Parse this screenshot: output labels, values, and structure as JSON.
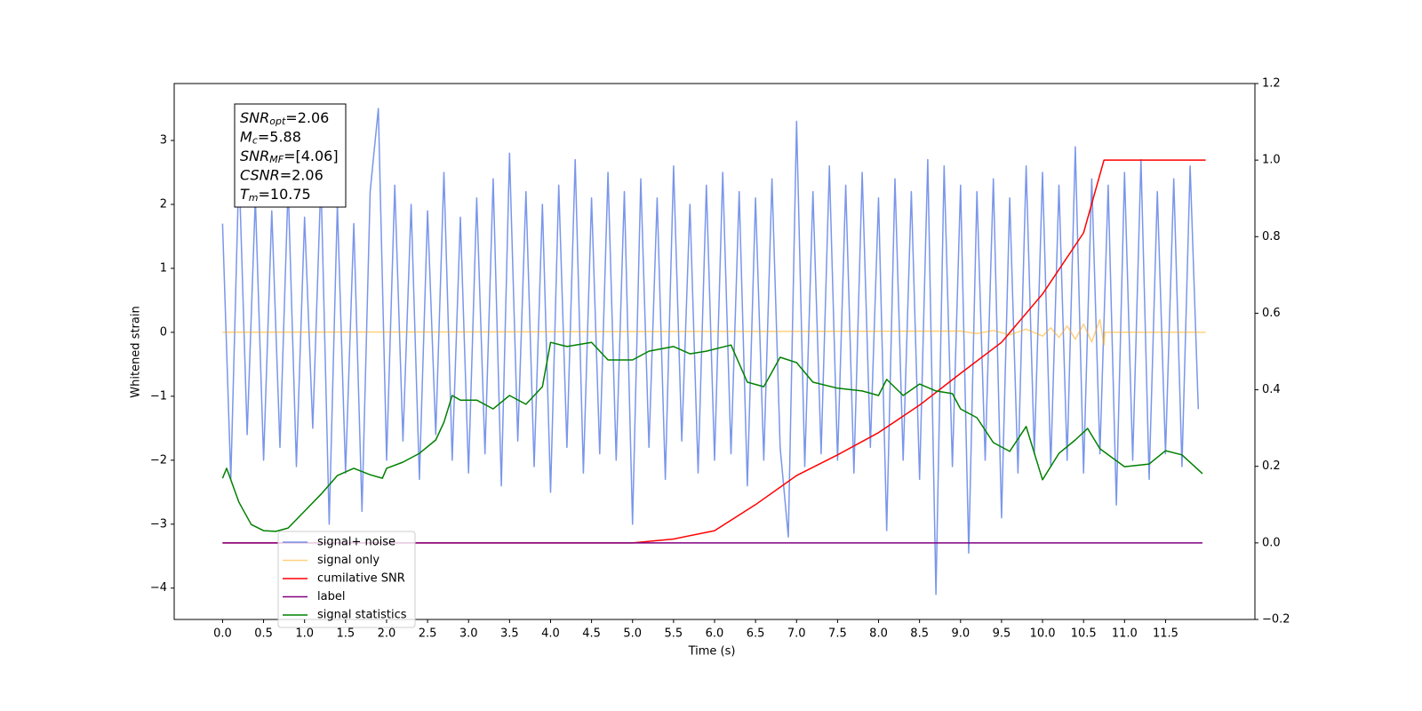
{
  "chart_data": {
    "type": "line",
    "xlabel": "Time (s)",
    "ylabel": "Whitened strain",
    "xlim": [
      -0.59,
      12.59
    ],
    "ylim": [
      -4.49,
      3.89
    ],
    "y2lim": [
      -0.2,
      1.2
    ],
    "xticks": [
      {
        "value": 0,
        "label": "0.0"
      },
      {
        "value": 0.5,
        "label": "0.5"
      },
      {
        "value": 1,
        "label": "1.0"
      },
      {
        "value": 1.5,
        "label": "1.5"
      },
      {
        "value": 2,
        "label": "2.0"
      },
      {
        "value": 2.5,
        "label": "2.5"
      },
      {
        "value": 3,
        "label": "3.0"
      },
      {
        "value": 3.5,
        "label": "3.5"
      },
      {
        "value": 4,
        "label": "4.0"
      },
      {
        "value": 4.5,
        "label": "4.5"
      },
      {
        "value": 5,
        "label": "5.0"
      },
      {
        "value": 5.5,
        "label": "5.5"
      },
      {
        "value": 6,
        "label": "6.0"
      },
      {
        "value": 6.5,
        "label": "6.5"
      },
      {
        "value": 7,
        "label": "7.0"
      },
      {
        "value": 7.5,
        "label": "7.5"
      },
      {
        "value": 8,
        "label": "8.0"
      },
      {
        "value": 8.5,
        "label": "8.5"
      },
      {
        "value": 9,
        "label": "9.0"
      },
      {
        "value": 9.5,
        "label": "9.5"
      },
      {
        "value": 10,
        "label": "10.0"
      },
      {
        "value": 10.5,
        "label": "10.5"
      },
      {
        "value": 11,
        "label": "11.0"
      },
      {
        "value": 11.5,
        "label": "11.5"
      }
    ],
    "yticks": [
      {
        "value": -4,
        "label": "−4"
      },
      {
        "value": -3,
        "label": "−3"
      },
      {
        "value": -2,
        "label": "−2"
      },
      {
        "value": -1,
        "label": "−1"
      },
      0,
      1,
      2,
      3
    ],
    "y2ticks": [
      {
        "value": -0.2,
        "label": "−0.2"
      },
      {
        "value": 0,
        "label": "0.0"
      },
      0.2,
      0.4,
      0.6,
      0.8,
      {
        "value": 1,
        "label": "1.0"
      },
      1.2
    ],
    "grid": false,
    "legend": "lower left",
    "annotation": [
      {
        "symbol": "SNR",
        "sub": "opt",
        "text": "=2.06"
      },
      {
        "symbol": "M",
        "sub": "c",
        "text": "=5.88"
      },
      {
        "symbol": "SNR",
        "sub": "MF",
        "text": "=[4.06]"
      },
      {
        "symbol": "CSNR",
        "sub": "",
        "text": "=2.06"
      },
      {
        "symbol": "T",
        "sub": "m",
        "text": "=10.75"
      }
    ],
    "series": [
      {
        "name": "signal+ noise",
        "color": "#4169e1",
        "alpha": 0.7,
        "x": [
          0,
          0.1,
          0.2,
          0.3,
          0.4,
          0.5,
          0.6,
          0.7,
          0.8,
          0.9,
          1,
          1.1,
          1.2,
          1.3,
          1.4,
          1.5,
          1.6,
          1.7,
          1.8,
          1.9,
          2,
          2.1,
          2.2,
          2.3,
          2.4,
          2.5,
          2.6,
          2.7,
          2.8,
          2.9,
          3,
          3.1,
          3.2,
          3.3,
          3.4,
          3.5,
          3.6,
          3.7,
          3.8,
          3.9,
          4,
          4.1,
          4.2,
          4.3,
          4.4,
          4.5,
          4.6,
          4.7,
          4.8,
          4.9,
          5,
          5.1,
          5.2,
          5.3,
          5.4,
          5.5,
          5.6,
          5.7,
          5.8,
          5.9,
          6,
          6.1,
          6.2,
          6.3,
          6.4,
          6.5,
          6.6,
          6.7,
          6.8,
          6.9,
          7,
          7.1,
          7.2,
          7.3,
          7.4,
          7.5,
          7.6,
          7.7,
          7.8,
          7.9,
          8,
          8.1,
          8.2,
          8.3,
          8.4,
          8.5,
          8.6,
          8.7,
          8.8,
          8.9,
          9,
          9.1,
          9.2,
          9.3,
          9.4,
          9.5,
          9.6,
          9.7,
          9.8,
          9.9,
          10,
          10.1,
          10.2,
          10.3,
          10.4,
          10.5,
          10.6,
          10.7,
          10.8,
          10.9,
          11,
          11.1,
          11.2,
          11.3,
          11.4,
          11.5,
          11.6,
          11.7,
          11.8,
          11.9
        ],
        "values": [
          1.7,
          -2.3,
          2.6,
          -1.6,
          2.1,
          -2.0,
          1.9,
          -1.8,
          2.3,
          -2.1,
          1.8,
          -1.5,
          2.4,
          -3.0,
          2.0,
          -2.2,
          1.7,
          -2.8,
          2.2,
          3.5,
          -2.0,
          2.3,
          -1.7,
          2.0,
          -2.3,
          1.9,
          -1.6,
          2.5,
          -2.0,
          1.8,
          -2.2,
          2.1,
          -1.9,
          2.4,
          -2.4,
          2.8,
          -1.7,
          2.2,
          -2.1,
          2.0,
          -2.5,
          2.3,
          -1.8,
          2.7,
          -2.2,
          2.1,
          -1.9,
          2.5,
          -2.0,
          2.2,
          -3.0,
          2.4,
          -1.8,
          2.1,
          -2.3,
          2.6,
          -1.7,
          2.0,
          -2.2,
          2.3,
          -2.0,
          2.5,
          -1.9,
          2.2,
          -2.4,
          2.1,
          -2.0,
          2.4,
          -1.8,
          -3.2,
          3.3,
          -2.1,
          2.2,
          -1.9,
          2.6,
          -2.0,
          2.3,
          -2.2,
          2.5,
          -1.8,
          2.1,
          -3.1,
          2.4,
          -2.0,
          2.2,
          -2.3,
          2.7,
          -4.1,
          2.6,
          -2.1,
          2.3,
          -3.45,
          2.2,
          -2.0,
          2.4,
          -2.9,
          2.1,
          -2.2,
          2.6,
          -1.9,
          2.5,
          -2.1,
          2.3,
          -2.0,
          2.9,
          -2.2,
          2.4,
          -1.9,
          2.3,
          -2.7,
          2.5,
          -2.0,
          2.7,
          -2.3,
          2.2,
          -1.9,
          2.4,
          -2.1,
          2.6,
          -1.2
        ]
      },
      {
        "name": "signal only",
        "color": "#ffa500",
        "alpha": 0.5,
        "x": [
          0,
          9.0,
          9.2,
          9.4,
          9.6,
          9.8,
          10.0,
          10.1,
          10.2,
          10.3,
          10.4,
          10.5,
          10.6,
          10.7,
          10.75,
          10.76,
          11.99
        ],
        "values": [
          0,
          0.02,
          -0.02,
          0.03,
          -0.04,
          0.05,
          -0.06,
          0.07,
          -0.08,
          0.1,
          -0.11,
          0.13,
          -0.15,
          0.2,
          -0.2,
          0,
          0
        ]
      },
      {
        "name": "cumilative SNR",
        "color": "#ff0000",
        "alpha": 1,
        "axis": "y2",
        "x": [
          0,
          5.0,
          5.5,
          6.0,
          6.5,
          7.0,
          7.5,
          8.0,
          8.5,
          9.0,
          9.5,
          10.0,
          10.5,
          10.75,
          11.99
        ],
        "values": [
          0,
          0,
          0.01,
          0.032,
          0.1,
          0.176,
          0.23,
          0.288,
          0.36,
          0.443,
          0.524,
          0.65,
          0.81,
          1.0,
          1.0
        ]
      },
      {
        "name": "label",
        "color": "#800080",
        "alpha": 1,
        "axis": "y2",
        "x": [
          0,
          11.95
        ],
        "values": [
          0,
          0
        ]
      },
      {
        "name": "signal statistics",
        "color": "#008000",
        "alpha": 1,
        "axis": "y2",
        "x": [
          0,
          0.05,
          0.2,
          0.35,
          0.5,
          0.65,
          0.8,
          1.0,
          1.2,
          1.4,
          1.6,
          1.8,
          1.95,
          2.0,
          2.2,
          2.4,
          2.6,
          2.7,
          2.8,
          2.9,
          3.1,
          3.3,
          3.5,
          3.7,
          3.9,
          4.0,
          4.2,
          4.5,
          4.7,
          5.0,
          5.2,
          5.5,
          5.7,
          5.9,
          6.2,
          6.4,
          6.6,
          6.8,
          7.0,
          7.2,
          7.5,
          7.8,
          8.0,
          8.1,
          8.3,
          8.5,
          8.7,
          8.9,
          9.0,
          9.2,
          9.4,
          9.6,
          9.8,
          10.0,
          10.2,
          10.4,
          10.55,
          10.7,
          11.0,
          11.3,
          11.5,
          11.7,
          11.95
        ],
        "values": [
          0.169,
          0.195,
          0.106,
          0.048,
          0.032,
          0.03,
          0.039,
          0.083,
          0.127,
          0.176,
          0.195,
          0.178,
          0.169,
          0.195,
          0.211,
          0.234,
          0.269,
          0.315,
          0.385,
          0.373,
          0.373,
          0.35,
          0.385,
          0.362,
          0.408,
          0.524,
          0.513,
          0.524,
          0.478,
          0.478,
          0.501,
          0.513,
          0.494,
          0.501,
          0.517,
          0.42,
          0.408,
          0.485,
          0.471,
          0.42,
          0.404,
          0.397,
          0.385,
          0.427,
          0.385,
          0.415,
          0.397,
          0.39,
          0.35,
          0.327,
          0.262,
          0.239,
          0.304,
          0.165,
          0.234,
          0.269,
          0.299,
          0.246,
          0.199,
          0.206,
          0.241,
          0.23,
          0.181
        ]
      }
    ]
  }
}
